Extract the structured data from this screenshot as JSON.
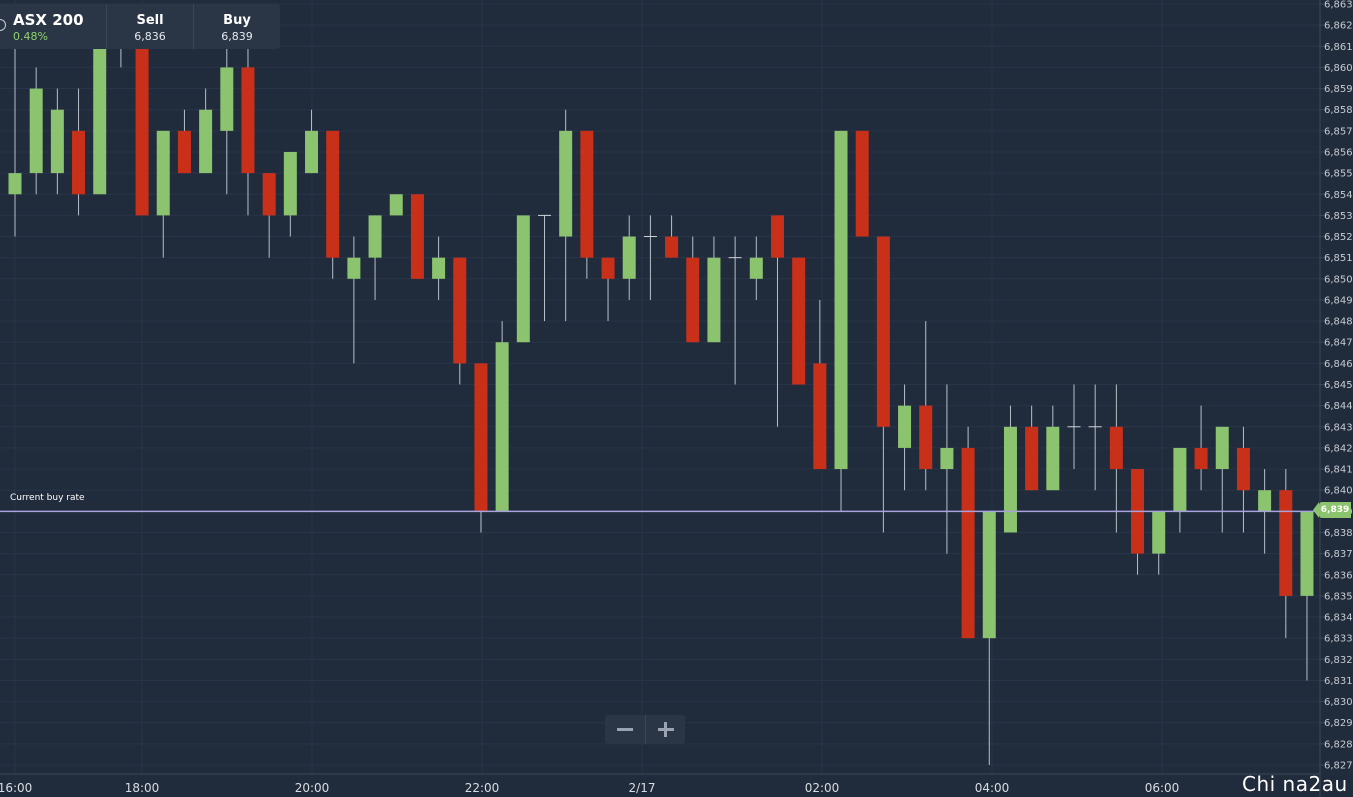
{
  "info_panel": {
    "instrument": "ASX 200",
    "change": "0.48%",
    "sell_label": "Sell",
    "sell_value": "6,836",
    "buy_label": "Buy",
    "buy_value": "6,839"
  },
  "current_rate": {
    "label": "Current buy rate",
    "value": "6,839"
  },
  "watermark": "Chi na2au",
  "colors": {
    "background": "#202b3b",
    "bullish": "#8cc36e",
    "bearish": "#c93019",
    "grid": "#28344a",
    "current_rate_line": "#a9a3dd"
  },
  "chart_data": {
    "type": "candlestick",
    "title": "",
    "xlabel": "",
    "ylabel": "",
    "ylim": [
      6826.5,
      6863.4
    ],
    "y_ticks": [
      6827,
      6828,
      6829,
      6830,
      6831,
      6832,
      6833,
      6834,
      6835,
      6836,
      6837,
      6838,
      6839,
      6840,
      6841,
      6842,
      6843,
      6844,
      6845,
      6846,
      6847,
      6848,
      6849,
      6850,
      6851,
      6852,
      6853,
      6854,
      6855,
      6856,
      6857,
      6858,
      6859,
      6860,
      6861,
      6862,
      6863
    ],
    "x_tick_labels": [
      "16:00",
      "18:00",
      "20:00",
      "22:00",
      "2/17",
      "02:00",
      "04:00",
      "06:00"
    ],
    "grid": true,
    "current_buy_rate": 6839,
    "candles": [
      {
        "o": 6854,
        "h": 6862,
        "l": 6852,
        "c": 6855
      },
      {
        "o": 6855,
        "h": 6860,
        "l": 6854,
        "c": 6859
      },
      {
        "o": 6855,
        "h": 6859,
        "l": 6854,
        "c": 6858
      },
      {
        "o": 6857,
        "h": 6859,
        "l": 6853,
        "c": 6854
      },
      {
        "o": 6854,
        "h": 6863,
        "l": 6854,
        "c": 6863
      },
      {
        "o": 6862,
        "h": 6863,
        "l": 6860,
        "c": 6862
      },
      {
        "o": 6863,
        "h": 6863,
        "l": 6853,
        "c": 6853
      },
      {
        "o": 6853,
        "h": 6857,
        "l": 6851,
        "c": 6857
      },
      {
        "o": 6857,
        "h": 6858,
        "l": 6855,
        "c": 6855
      },
      {
        "o": 6855,
        "h": 6859,
        "l": 6855,
        "c": 6858
      },
      {
        "o": 6857,
        "h": 6863,
        "l": 6854,
        "c": 6860
      },
      {
        "o": 6860,
        "h": 6861,
        "l": 6853,
        "c": 6855
      },
      {
        "o": 6855,
        "h": 6855,
        "l": 6851,
        "c": 6853
      },
      {
        "o": 6853,
        "h": 6856,
        "l": 6852,
        "c": 6856
      },
      {
        "o": 6855,
        "h": 6858,
        "l": 6855,
        "c": 6857
      },
      {
        "o": 6857,
        "h": 6857,
        "l": 6850,
        "c": 6851
      },
      {
        "o": 6850,
        "h": 6852,
        "l": 6846,
        "c": 6851
      },
      {
        "o": 6851,
        "h": 6853,
        "l": 6849,
        "c": 6853
      },
      {
        "o": 6853,
        "h": 6854,
        "l": 6853,
        "c": 6854
      },
      {
        "o": 6854,
        "h": 6854,
        "l": 6850,
        "c": 6850
      },
      {
        "o": 6850,
        "h": 6852,
        "l": 6849,
        "c": 6851
      },
      {
        "o": 6851,
        "h": 6851,
        "l": 6845,
        "c": 6846
      },
      {
        "o": 6846,
        "h": 6846,
        "l": 6838,
        "c": 6839
      },
      {
        "o": 6839,
        "h": 6848,
        "l": 6839,
        "c": 6847
      },
      {
        "o": 6847,
        "h": 6853,
        "l": 6847,
        "c": 6853
      },
      {
        "o": 6853,
        "h": 6853,
        "l": 6848,
        "c": 6853
      },
      {
        "o": 6852,
        "h": 6858,
        "l": 6848,
        "c": 6857
      },
      {
        "o": 6857,
        "h": 6857,
        "l": 6850,
        "c": 6851
      },
      {
        "o": 6851,
        "h": 6851,
        "l": 6848,
        "c": 6850
      },
      {
        "o": 6850,
        "h": 6853,
        "l": 6849,
        "c": 6852
      },
      {
        "o": 6852,
        "h": 6853,
        "l": 6849,
        "c": 6852
      },
      {
        "o": 6852,
        "h": 6853,
        "l": 6851,
        "c": 6851
      },
      {
        "o": 6851,
        "h": 6852,
        "l": 6847,
        "c": 6847
      },
      {
        "o": 6847,
        "h": 6852,
        "l": 6847,
        "c": 6851
      },
      {
        "o": 6851,
        "h": 6852,
        "l": 6845,
        "c": 6851
      },
      {
        "o": 6850,
        "h": 6852,
        "l": 6849,
        "c": 6851
      },
      {
        "o": 6853,
        "h": 6853,
        "l": 6843,
        "c": 6851
      },
      {
        "o": 6851,
        "h": 6851,
        "l": 6845,
        "c": 6845
      },
      {
        "o": 6846,
        "h": 6849,
        "l": 6841,
        "c": 6841
      },
      {
        "o": 6841,
        "h": 6857,
        "l": 6839,
        "c": 6857
      },
      {
        "o": 6857,
        "h": 6857,
        "l": 6852,
        "c": 6852
      },
      {
        "o": 6852,
        "h": 6852,
        "l": 6838,
        "c": 6843
      },
      {
        "o": 6842,
        "h": 6845,
        "l": 6840,
        "c": 6844
      },
      {
        "o": 6844,
        "h": 6848,
        "l": 6840,
        "c": 6841
      },
      {
        "o": 6841,
        "h": 6845,
        "l": 6837,
        "c": 6842
      },
      {
        "o": 6842,
        "h": 6843,
        "l": 6833,
        "c": 6833
      },
      {
        "o": 6833,
        "h": 6839,
        "l": 6827,
        "c": 6839
      },
      {
        "o": 6838,
        "h": 6844,
        "l": 6838,
        "c": 6843
      },
      {
        "o": 6843,
        "h": 6844,
        "l": 6840,
        "c": 6840
      },
      {
        "o": 6840,
        "h": 6844,
        "l": 6840,
        "c": 6843
      },
      {
        "o": 6843,
        "h": 6845,
        "l": 6841,
        "c": 6843
      },
      {
        "o": 6843,
        "h": 6845,
        "l": 6840,
        "c": 6843
      },
      {
        "o": 6843,
        "h": 6845,
        "l": 6838,
        "c": 6841
      },
      {
        "o": 6841,
        "h": 6841,
        "l": 6836,
        "c": 6837
      },
      {
        "o": 6837,
        "h": 6839,
        "l": 6836,
        "c": 6839
      },
      {
        "o": 6839,
        "h": 6842,
        "l": 6838,
        "c": 6842
      },
      {
        "o": 6842,
        "h": 6844,
        "l": 6840,
        "c": 6841
      },
      {
        "o": 6841,
        "h": 6843,
        "l": 6838,
        "c": 6843
      },
      {
        "o": 6842,
        "h": 6843,
        "l": 6838,
        "c": 6840
      },
      {
        "o": 6839,
        "h": 6841,
        "l": 6837,
        "c": 6840
      },
      {
        "o": 6840,
        "h": 6841,
        "l": 6833,
        "c": 6835
      },
      {
        "o": 6835,
        "h": 6839,
        "l": 6831,
        "c": 6839
      }
    ]
  }
}
